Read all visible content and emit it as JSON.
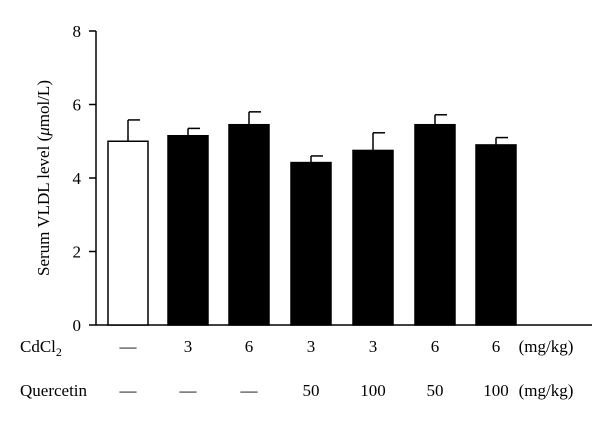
{
  "chart_data": {
    "type": "bar",
    "ylabel_prefix": "Serum VLDL level (",
    "ylabel_mu": "μ",
    "ylabel_suffix": "mol/L)",
    "ylim": [
      0,
      8
    ],
    "yticks": [
      "0",
      "2",
      "4",
      "6",
      "8"
    ],
    "grid": false,
    "values": [
      5.0,
      5.15,
      5.45,
      4.42,
      4.75,
      5.45,
      4.9
    ],
    "errors": [
      0.58,
      0.2,
      0.35,
      0.18,
      0.48,
      0.27,
      0.2
    ],
    "bar_fill": [
      "#ffffff",
      "#000000",
      "#000000",
      "#000000",
      "#000000",
      "#000000",
      "#000000"
    ],
    "rows": [
      {
        "label_main": "CdCl",
        "label_sub": "2",
        "values": [
          "—",
          "3",
          "6",
          "3",
          "3",
          "6",
          "6"
        ],
        "unit": "(mg/kg)"
      },
      {
        "label_main": "Quercetin",
        "label_sub": "",
        "values": [
          "—",
          "—",
          "—",
          "50",
          "100",
          "50",
          "100"
        ],
        "unit": "(mg/kg)"
      }
    ]
  }
}
